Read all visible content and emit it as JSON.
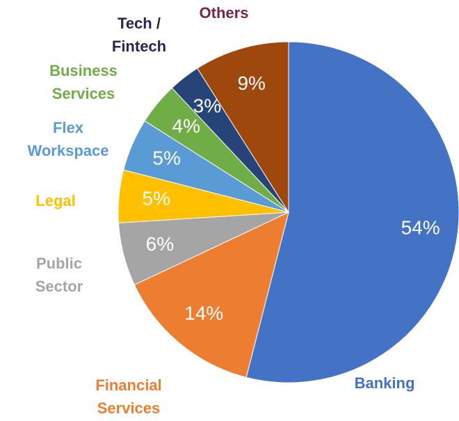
{
  "chart_data": {
    "type": "pie",
    "categories": [
      [
        "Banking"
      ],
      [
        "Financial",
        "Services"
      ],
      [
        "Public",
        "Sector"
      ],
      [
        "Legal"
      ],
      [
        "Flex",
        "Workspace"
      ],
      [
        "Business",
        "Services"
      ],
      [
        "Tech /",
        "Fintech"
      ],
      [
        "Others"
      ]
    ],
    "values": [
      54,
      14,
      6,
      5,
      5,
      4,
      3,
      9
    ],
    "value_labels": [
      "54%",
      "14%",
      "6%",
      "5%",
      "5%",
      "4%",
      "3%",
      "9%"
    ],
    "colors": [
      "#4472c4",
      "#ed7d31",
      "#a5a5a5",
      "#ffc000",
      "#5b9bd5",
      "#70ad47",
      "#264478",
      "#9e480e"
    ],
    "label_colors": [
      "#4472c4",
      "#ed7d31",
      "#a5a5a5",
      "#ffc000",
      "#5b9bd5",
      "#70ad47",
      "#262650",
      "#7b2545"
    ]
  }
}
